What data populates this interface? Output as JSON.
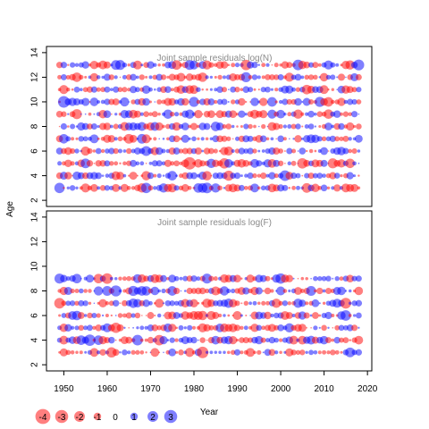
{
  "chart_data": [
    {
      "type": "scatter",
      "title": "Joint sample residuals log(N)",
      "xlabel": "Year",
      "ylabel": "Age",
      "xlim": [
        1946,
        2021
      ],
      "ylim": [
        1.5,
        14.5
      ],
      "x_range": [
        1949,
        2018
      ],
      "ages": [
        3,
        4,
        5,
        6,
        7,
        8,
        9,
        10,
        11,
        12,
        13
      ],
      "x_ticks": [
        1950,
        1960,
        1970,
        1980,
        1990,
        2000,
        2010,
        2020
      ],
      "y_ticks": [
        2,
        4,
        6,
        8,
        10,
        12,
        14
      ],
      "encoding": "bubble area ~ |residual|; red = negative, blue = positive",
      "sample_points": [
        {
          "year": 1949,
          "age": 3,
          "residual": 1.9
        },
        {
          "year": 1950,
          "age": 10,
          "residual": 2.4
        },
        {
          "year": 1950,
          "age": 7,
          "residual": 1.6
        },
        {
          "year": 1953,
          "age": 9,
          "residual": -1.8
        },
        {
          "year": 1965,
          "age": 7,
          "residual": -1.7
        },
        {
          "year": 1975,
          "age": 4,
          "residual": 1.6
        },
        {
          "year": 1979,
          "age": 5,
          "residual": -2.7
        },
        {
          "year": 1983,
          "age": 3,
          "residual": 2.0
        },
        {
          "year": 1987,
          "age": 5,
          "residual": -1.9
        },
        {
          "year": 2004,
          "age": 13,
          "residual": 2.0
        },
        {
          "year": 2012,
          "age": 5,
          "residual": -1.8
        },
        {
          "year": 2016,
          "age": 5,
          "residual": -1.6
        },
        {
          "year": 2018,
          "age": 13,
          "residual": 2.1
        }
      ]
    },
    {
      "type": "scatter",
      "title": "Joint sample residuals log(F)",
      "xlabel": "Year",
      "ylabel": "Age",
      "xlim": [
        1946,
        2021
      ],
      "ylim": [
        1.5,
        14.5
      ],
      "x_range": [
        1949,
        2018
      ],
      "ages": [
        3,
        4,
        5,
        6,
        7,
        8,
        9
      ],
      "x_ticks": [
        1950,
        1960,
        1970,
        1980,
        1990,
        2000,
        2010,
        2020
      ],
      "y_ticks": [
        2,
        4,
        6,
        8,
        10,
        12,
        14
      ],
      "encoding": "bubble area ~ |residual|; red = negative, blue = positive",
      "sample_points": [
        {
          "year": 1949,
          "age": 9,
          "residual": 1.8
        },
        {
          "year": 1949,
          "age": 7,
          "residual": -2.0
        },
        {
          "year": 1953,
          "age": 9,
          "residual": 1.6
        },
        {
          "year": 1966,
          "age": 7,
          "residual": 1.6
        },
        {
          "year": 1979,
          "age": 3,
          "residual": -1.5
        },
        {
          "year": 2000,
          "age": 9,
          "residual": 1.9
        },
        {
          "year": 2016,
          "age": 3,
          "residual": 1.7
        }
      ]
    }
  ],
  "legend": {
    "items": [
      {
        "value": -4,
        "label": "-4",
        "color": "#ff0000"
      },
      {
        "value": -3,
        "label": "-3",
        "color": "#ff0000"
      },
      {
        "value": -2,
        "label": "-2",
        "color": "#ff0000"
      },
      {
        "value": -1,
        "label": "-1",
        "color": "#ff0000"
      },
      {
        "value": 0,
        "label": "0",
        "color": "#ffffff"
      },
      {
        "value": 1,
        "label": "1",
        "color": "#0000ff"
      },
      {
        "value": 2,
        "label": "2",
        "color": "#0000ff"
      },
      {
        "value": 3,
        "label": "3",
        "color": "#0000ff"
      }
    ],
    "placement": "bottom-left"
  },
  "colors": {
    "negative": "#ff0000",
    "positive": "#0000ff",
    "title": "#8a8a8a",
    "axis": "#000000"
  }
}
